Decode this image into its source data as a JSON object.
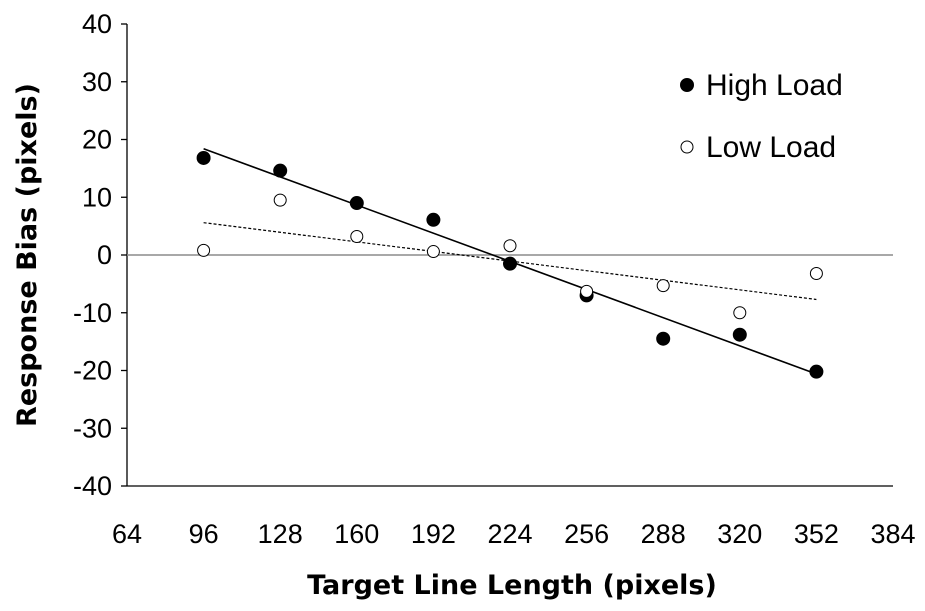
{
  "chart_data": {
    "type": "scatter",
    "title": "",
    "xlabel": "Target Line Length (pixels)",
    "ylabel": "Response Bias (pixels)",
    "xlim": [
      64,
      384
    ],
    "ylim": [
      -40,
      40
    ],
    "x_ticks": [
      64,
      96,
      128,
      160,
      192,
      224,
      256,
      288,
      320,
      352,
      384
    ],
    "y_ticks": [
      -40,
      -30,
      -20,
      -10,
      0,
      10,
      20,
      30,
      40
    ],
    "grid": false,
    "zero_line": true,
    "legend_position": "top-right",
    "series": [
      {
        "name": "High Load",
        "marker": "filled-circle",
        "color": "#000000",
        "x": [
          96,
          128,
          160,
          192,
          224,
          256,
          288,
          320,
          352
        ],
        "y": [
          16.8,
          14.6,
          9.0,
          6.1,
          -1.5,
          -7.0,
          -14.5,
          -13.8,
          -20.2
        ],
        "trendline": {
          "style": "solid",
          "x": [
            96,
            352
          ],
          "y": [
            18.4,
            -20.6
          ]
        }
      },
      {
        "name": "Low Load",
        "marker": "open-circle",
        "color": "#000000",
        "x": [
          96,
          128,
          160,
          192,
          224,
          256,
          288,
          320,
          352
        ],
        "y": [
          0.8,
          9.5,
          3.2,
          0.6,
          1.6,
          -6.3,
          -5.3,
          -10.0,
          -3.2
        ],
        "trendline": {
          "style": "dotted",
          "x": [
            96,
            352
          ],
          "y": [
            5.6,
            -7.7
          ]
        }
      }
    ]
  }
}
